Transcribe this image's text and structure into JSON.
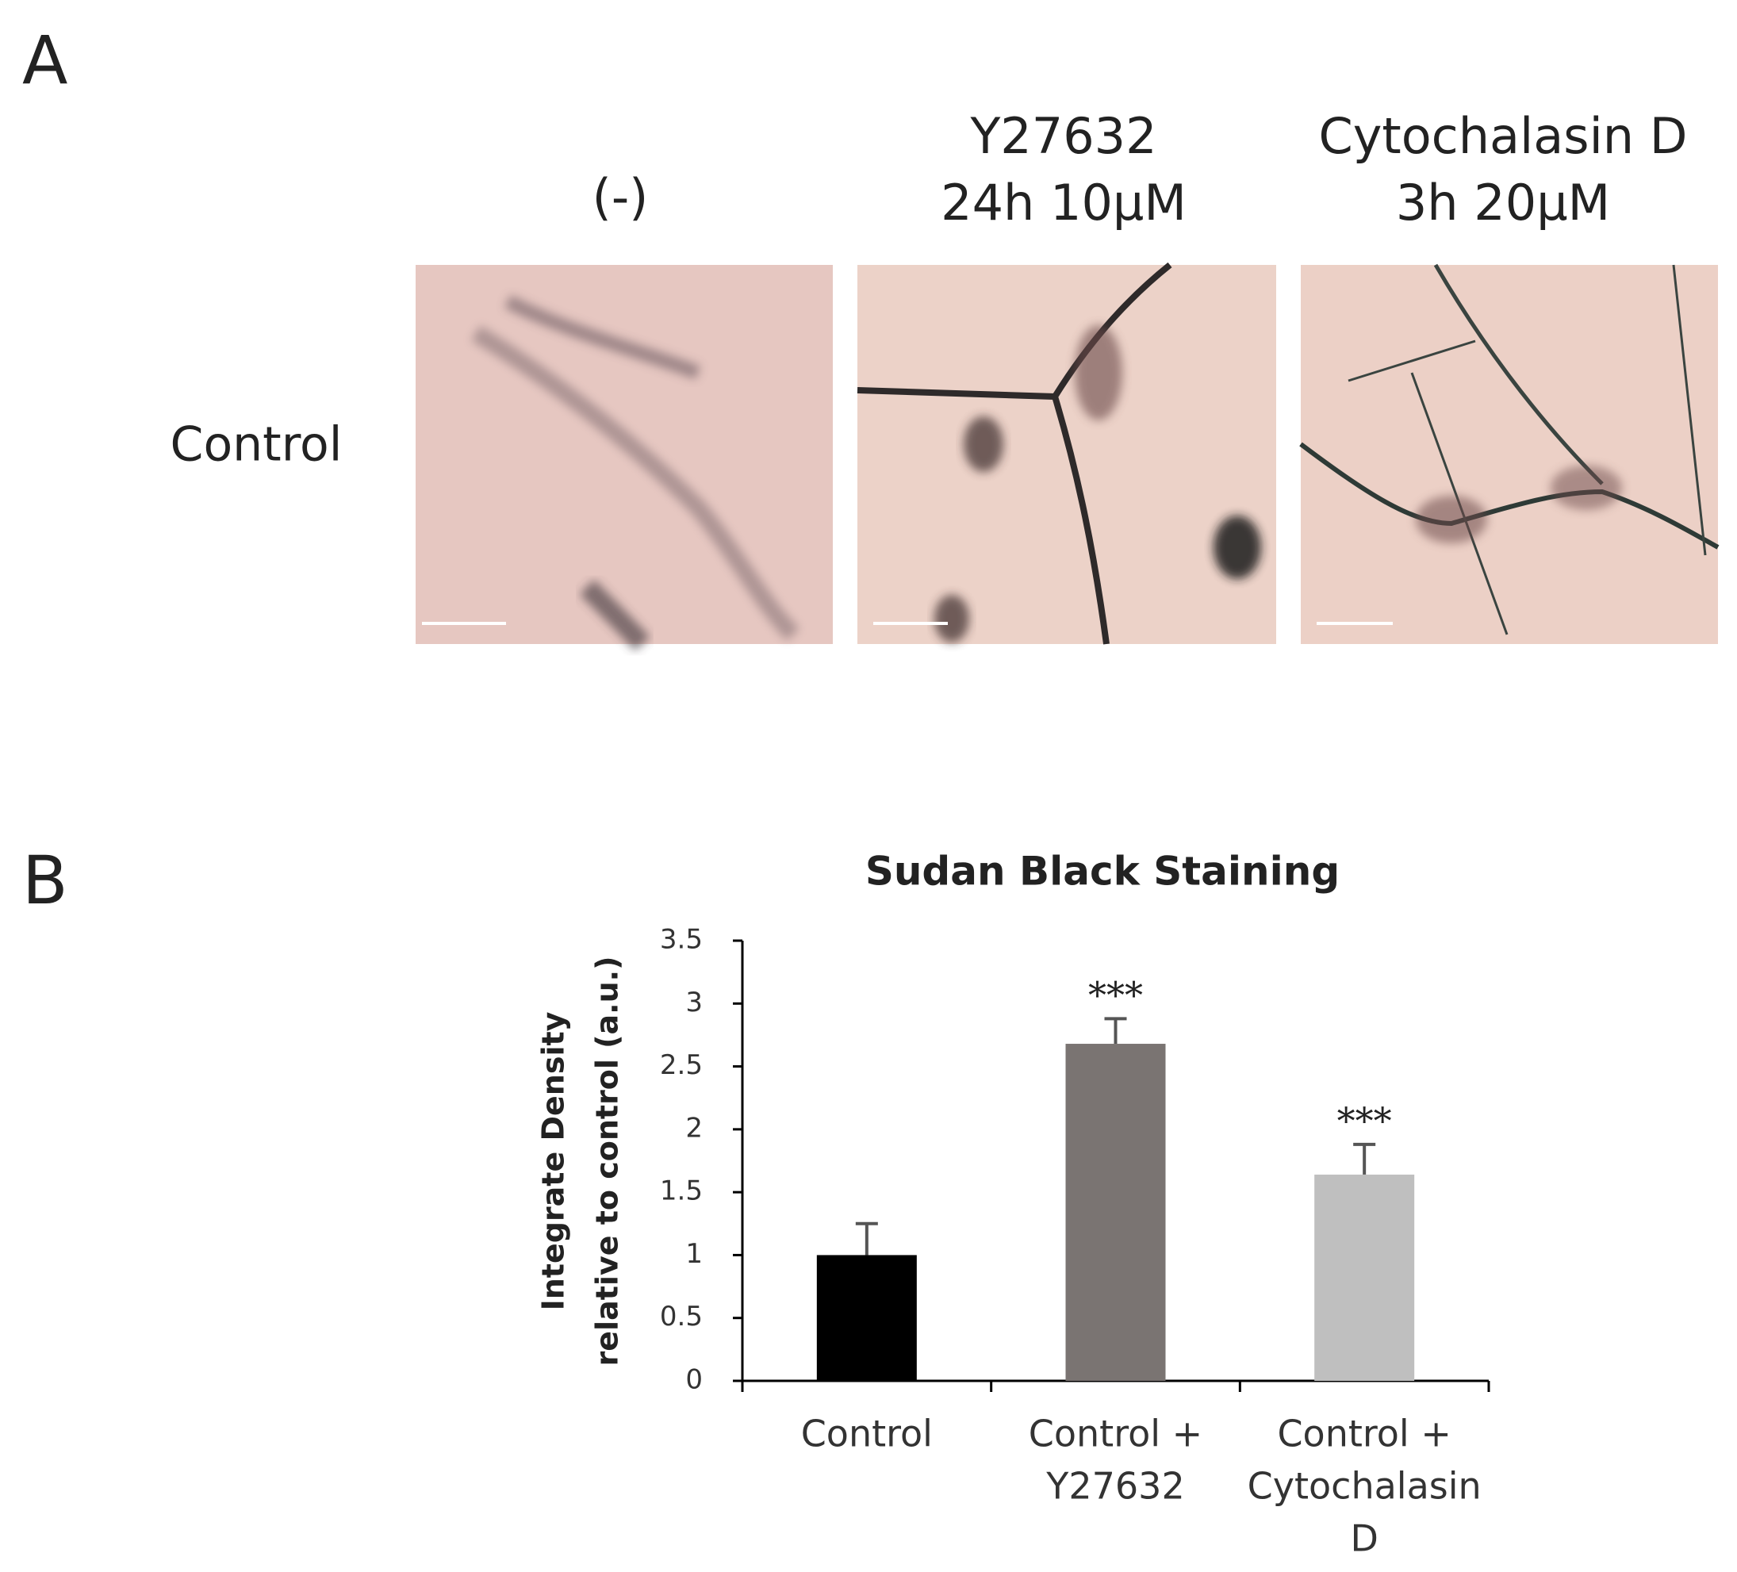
{
  "panel_a": {
    "letter": "A",
    "column_headers": [
      [
        "(-)"
      ],
      [
        "Y27632",
        "24h 10μM"
      ],
      [
        "Cytochalasin D",
        "3h 20μM"
      ]
    ],
    "row_label": "Control"
  },
  "panel_b": {
    "letter": "B"
  },
  "chart_data": {
    "type": "bar",
    "title": "Sudan Black Staining",
    "ylabel": [
      "Integrate Density",
      "relative to control (a.u.)"
    ],
    "categories": [
      [
        "Control"
      ],
      [
        "Control +",
        "Y27632"
      ],
      [
        "Control +",
        "Cytochalasin",
        "D"
      ]
    ],
    "values": [
      1.0,
      2.68,
      1.64
    ],
    "errors": [
      0.25,
      0.2,
      0.24
    ],
    "annotations": [
      null,
      "***",
      "***"
    ],
    "colors": [
      "#000000",
      "#7a7472",
      "#bfbfbf"
    ],
    "ylim": [
      0,
      3.5
    ],
    "yticks": [
      0,
      0.5,
      1,
      1.5,
      2,
      2.5,
      3,
      3.5
    ],
    "grid": false
  }
}
